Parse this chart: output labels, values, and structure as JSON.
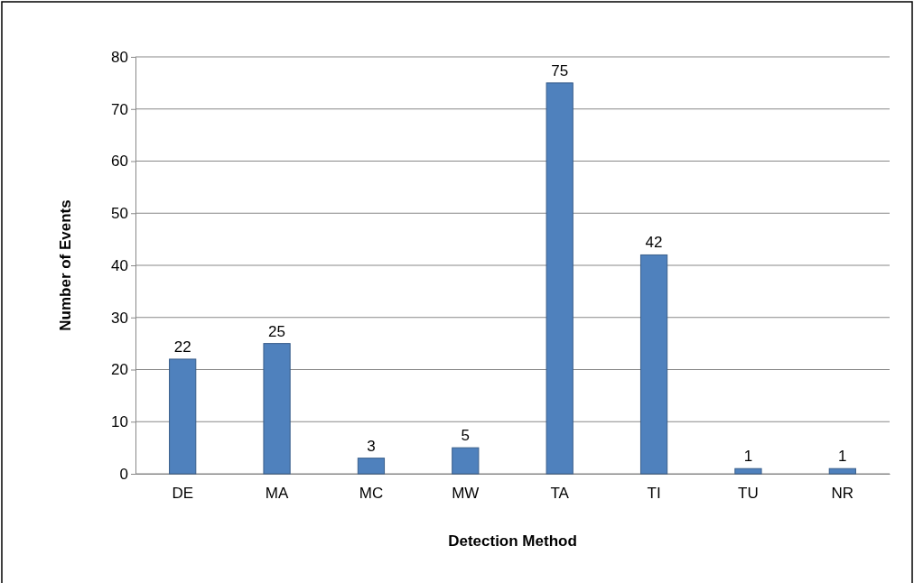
{
  "chart_data": {
    "type": "bar",
    "xlabel": "Detection Method",
    "ylabel": "Number of Events",
    "categories": [
      "DE",
      "MA",
      "MC",
      "MW",
      "TA",
      "TI",
      "TU",
      "NR"
    ],
    "values": [
      22,
      25,
      3,
      5,
      75,
      42,
      1,
      1
    ],
    "color": "#4f81bd",
    "ylim": [
      0,
      80
    ],
    "yticks": [
      0,
      10,
      20,
      30,
      40,
      50,
      60,
      70,
      80
    ],
    "grid": "y",
    "data_labels": true
  }
}
